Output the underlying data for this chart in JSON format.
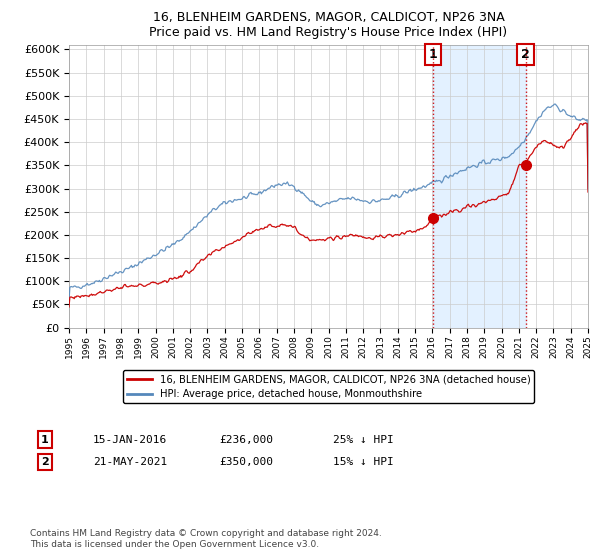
{
  "title": "16, BLENHEIM GARDENS, MAGOR, CALDICOT, NP26 3NA",
  "subtitle": "Price paid vs. HM Land Registry's House Price Index (HPI)",
  "ylim": [
    0,
    600000
  ],
  "xlim_start": 1995,
  "xlim_end": 2025,
  "red_line_label": "16, BLENHEIM GARDENS, MAGOR, CALDICOT, NP26 3NA (detached house)",
  "blue_line_label": "HPI: Average price, detached house, Monmouthshire",
  "annotation1_date": "15-JAN-2016",
  "annotation1_price": "£236,000",
  "annotation1_hpi": "25% ↓ HPI",
  "annotation2_date": "21-MAY-2021",
  "annotation2_price": "£350,000",
  "annotation2_hpi": "15% ↓ HPI",
  "footnote": "Contains HM Land Registry data © Crown copyright and database right 2024.\nThis data is licensed under the Open Government Licence v3.0.",
  "red_color": "#cc0000",
  "blue_color": "#5588bb",
  "shade_color": "#ddeeff",
  "marker1_x": 2016.04,
  "marker1_y": 236000,
  "marker2_x": 2021.39,
  "marker2_y": 350000,
  "vline1_x": 2016.04,
  "vline2_x": 2021.39,
  "hpi_years": [
    1995,
    1995.5,
    1996,
    1996.5,
    1997,
    1997.5,
    1998,
    1998.5,
    1999,
    1999.5,
    2000,
    2000.5,
    2001,
    2001.5,
    2002,
    2002.5,
    2003,
    2003.5,
    2004,
    2004.5,
    2005,
    2005.5,
    2006,
    2006.5,
    2007,
    2007.5,
    2008,
    2008.5,
    2009,
    2009.5,
    2010,
    2010.5,
    2011,
    2011.5,
    2012,
    2012.5,
    2013,
    2013.5,
    2014,
    2014.5,
    2015,
    2015.5,
    2016,
    2016.5,
    2017,
    2017.5,
    2018,
    2018.5,
    2019,
    2019.5,
    2020,
    2020.5,
    2021,
    2021.5,
    2022,
    2022.5,
    2023,
    2023.5,
    2024,
    2024.5,
    2025
  ],
  "hpi_vals": [
    85000,
    88000,
    93000,
    98000,
    106000,
    114000,
    120000,
    128000,
    138000,
    148000,
    158000,
    168000,
    178000,
    192000,
    208000,
    225000,
    242000,
    258000,
    268000,
    275000,
    278000,
    284000,
    290000,
    300000,
    308000,
    310000,
    305000,
    290000,
    272000,
    262000,
    268000,
    273000,
    278000,
    278000,
    274000,
    272000,
    274000,
    278000,
    284000,
    292000,
    298000,
    304000,
    310000,
    318000,
    328000,
    336000,
    344000,
    350000,
    356000,
    360000,
    364000,
    372000,
    390000,
    415000,
    445000,
    470000,
    480000,
    470000,
    455000,
    448000,
    450000
  ],
  "red_years": [
    1995,
    1995.5,
    1996,
    1996.5,
    1997,
    1997.5,
    1998,
    1998.5,
    1999,
    1999.5,
    2000,
    2000.5,
    2001,
    2001.5,
    2002,
    2002.5,
    2003,
    2003.5,
    2004,
    2004.5,
    2005,
    2005.5,
    2006,
    2006.5,
    2007,
    2007.5,
    2008,
    2008.5,
    2009,
    2009.5,
    2010,
    2010.5,
    2011,
    2011.5,
    2012,
    2012.5,
    2013,
    2013.5,
    2014,
    2014.5,
    2015,
    2015.5,
    2016,
    2016.5,
    2017,
    2017.5,
    2018,
    2018.5,
    2019,
    2019.5,
    2020,
    2020.5,
    2021,
    2021.5,
    2022,
    2022.5,
    2023,
    2023.5,
    2024,
    2024.5,
    2025
  ],
  "red_vals": [
    65000,
    67000,
    70000,
    73000,
    78000,
    82000,
    86000,
    88000,
    90000,
    93000,
    96000,
    100000,
    105000,
    112000,
    122000,
    138000,
    152000,
    165000,
    175000,
    185000,
    195000,
    205000,
    213000,
    218000,
    220000,
    225000,
    215000,
    200000,
    190000,
    188000,
    190000,
    195000,
    198000,
    200000,
    196000,
    193000,
    195000,
    198000,
    200000,
    205000,
    208000,
    215000,
    236000,
    240000,
    248000,
    255000,
    260000,
    265000,
    270000,
    275000,
    282000,
    295000,
    350000,
    360000,
    390000,
    405000,
    395000,
    385000,
    410000,
    435000,
    440000
  ]
}
